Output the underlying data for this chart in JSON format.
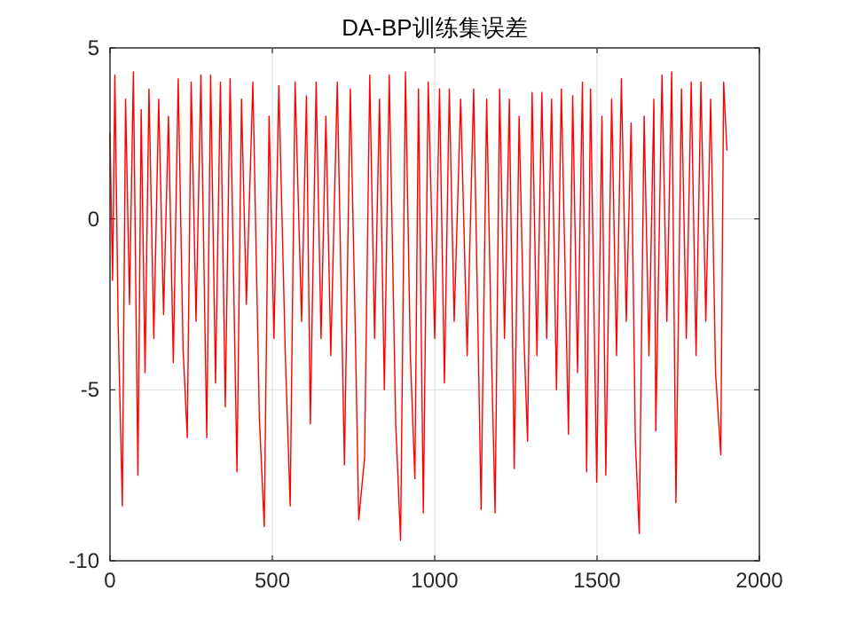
{
  "chart_data": {
    "type": "line",
    "title": "DA-BP训练集误差",
    "series": [
      {
        "color": "#ff0000",
        "x": [
          0,
          8,
          15,
          25,
          38,
          48,
          60,
          72,
          86,
          96,
          108,
          120,
          135,
          150,
          165,
          180,
          195,
          210,
          225,
          238,
          250,
          265,
          280,
          298,
          310,
          325,
          340,
          355,
          370,
          391,
          405,
          420,
          440,
          460,
          475,
          490,
          505,
          520,
          540,
          555,
          570,
          590,
          605,
          617,
          635,
          650,
          665,
          680,
          700,
          722,
          740,
          755,
          766,
          784,
          800,
          815,
          830,
          845,
          860,
          880,
          895,
          910,
          925,
          939,
          950,
          965,
          980,
          1000,
          1015,
          1030,
          1045,
          1060,
          1080,
          1100,
          1120,
          1143,
          1160,
          1175,
          1186,
          1200,
          1215,
          1230,
          1245,
          1260,
          1275,
          1286,
          1300,
          1315,
          1330,
          1345,
          1360,
          1375,
          1390,
          1412,
          1425,
          1440,
          1455,
          1468,
          1480,
          1499,
          1515,
          1527,
          1545,
          1560,
          1575,
          1590,
          1605,
          1618,
          1630,
          1645,
          1660,
          1675,
          1681,
          1700,
          1715,
          1730,
          1743,
          1760,
          1775,
          1790,
          1805,
          1820,
          1835,
          1850,
          1865,
          1881,
          1890,
          1900
        ],
        "values": [
          2.5,
          -1.8,
          4.2,
          -3,
          -8.4,
          3.5,
          -2.5,
          4.3,
          -7.5,
          3.2,
          -4.5,
          3.8,
          -3.5,
          3.5,
          -2.8,
          3.0,
          -4.2,
          4.1,
          -3.8,
          -6.4,
          4.0,
          -3.0,
          4.2,
          -6.4,
          4.2,
          -4.8,
          4.0,
          -5.5,
          4.1,
          -7.4,
          3.5,
          -2.5,
          4.0,
          -5.8,
          -9.0,
          3.0,
          -3.5,
          3.9,
          -4.0,
          -8.4,
          4.0,
          -3.0,
          3.6,
          -6.0,
          4.0,
          -3.5,
          3.0,
          -4.0,
          4.0,
          -7.2,
          3.8,
          -3.0,
          -8.8,
          -7.0,
          4.2,
          -3.5,
          3.5,
          -5.0,
          4.2,
          -6.0,
          -9.4,
          4.3,
          -4.0,
          -7.6,
          3.8,
          -8.6,
          4.0,
          -3.5,
          3.8,
          -4.8,
          3.8,
          -3.0,
          3.5,
          -4.0,
          3.8,
          -8.5,
          3.5,
          -4.0,
          -8.6,
          3.8,
          -3.5,
          3.5,
          -7.3,
          3.0,
          -3.5,
          -6.5,
          3.7,
          -4.0,
          3.7,
          -3.5,
          3.5,
          -5.0,
          3.8,
          -6.3,
          3.6,
          -4.5,
          4.0,
          -7.4,
          3.8,
          -7.7,
          3.0,
          -7.5,
          3.5,
          -4.0,
          4.1,
          -3.0,
          2.8,
          -6.5,
          -9.2,
          3.0,
          -4.0,
          3.5,
          -6.2,
          4.2,
          -3.0,
          4.3,
          -8.3,
          3.8,
          -3.5,
          4.0,
          -4.0,
          4.0,
          -3.0,
          3.5,
          -4.5,
          -6.9,
          4.0,
          2.0
        ]
      }
    ],
    "xlim": [
      0,
      2000
    ],
    "ylim": [
      -10,
      5
    ],
    "xticks": [
      0,
      500,
      1000,
      1500,
      2000
    ],
    "yticks": [
      -10,
      -5,
      0,
      5
    ],
    "grid": true,
    "marker": "none",
    "line_style": "solid"
  }
}
